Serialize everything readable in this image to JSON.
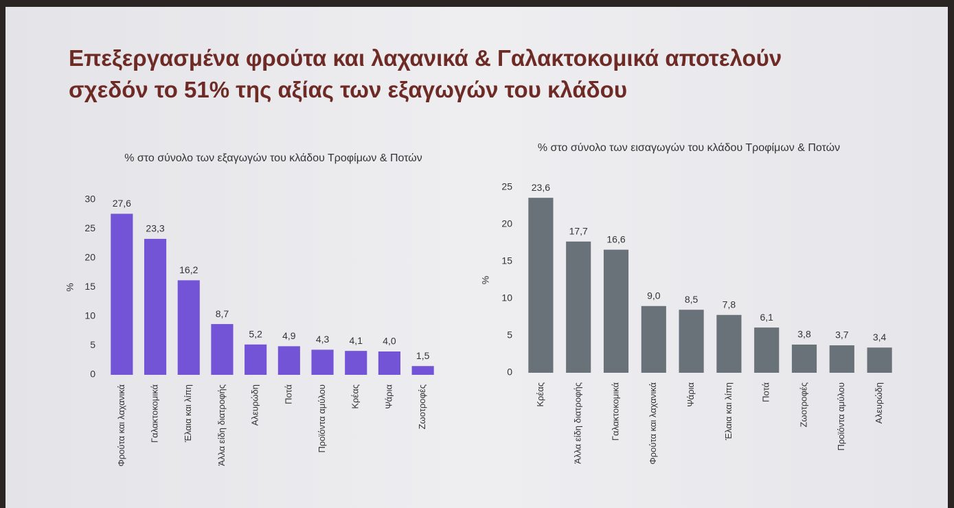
{
  "title": "Επεξεργασμένα φρούτα και λαχανικά & Γαλακτοκομικά αποτελούν σχεδόν το 51% της αξίας των εξαγωγών του κλάδου",
  "chart_data": [
    {
      "type": "bar",
      "title": "% στο σύνολο των εξαγωγών του κλάδου Τροφίμων & Ποτών",
      "y_label": "%",
      "categories": [
        "Φρούτα και λαχανικά",
        "Γαλακτοκομικά",
        "Έλαια και λίπη",
        "Άλλα είδη διατροφής",
        "Αλευρώδη",
        "Ποτά",
        "Προϊόντα αμύλου",
        "Κρέας",
        "Ψάρια",
        "Ζωοτροφές"
      ],
      "values": [
        27.6,
        23.3,
        16.2,
        8.7,
        5.2,
        4.9,
        4.3,
        4.1,
        4.0,
        1.5
      ],
      "value_labels": [
        "27,6",
        "23,3",
        "16,2",
        "8,7",
        "5,2",
        "4,9",
        "4,3",
        "4,1",
        "4,0",
        "1,5"
      ],
      "color": "#7454d6",
      "ylim": [
        0,
        30
      ],
      "yticks": [
        0,
        5,
        10,
        15,
        20,
        25,
        30
      ],
      "grid": false
    },
    {
      "type": "bar",
      "title": "% στο σύνολο των εισαγωγών του κλάδου Τροφίμων & Ποτών",
      "y_label": "%",
      "categories": [
        "Κρέας",
        "Άλλα είδη διατροφής",
        "Γαλακτοκομικά",
        "Φρούτα και λαχανικά",
        "Ψάρια",
        "Έλαια και λίπη",
        "Ποτά",
        "Ζωοτροφές",
        "Προϊόντα αμύλου",
        "Αλευρώδη"
      ],
      "values": [
        23.6,
        17.7,
        16.6,
        9.0,
        8.5,
        7.8,
        6.1,
        3.8,
        3.7,
        3.4
      ],
      "value_labels": [
        "23,6",
        "17,7",
        "16,6",
        "9,0",
        "8,5",
        "7,8",
        "6,1",
        "3,8",
        "3,7",
        "3,4"
      ],
      "color": "#6a7279",
      "ylim": [
        0,
        25
      ],
      "yticks": [
        0,
        5,
        10,
        15,
        20,
        25
      ],
      "grid": false
    }
  ]
}
